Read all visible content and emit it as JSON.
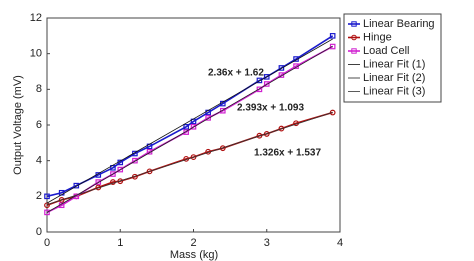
{
  "chart_data": {
    "type": "line",
    "xlabel": "Mass (kg)",
    "ylabel": "Output Voltage (mV)",
    "xlim": [
      0,
      4
    ],
    "xticks": [
      0,
      1,
      2,
      3,
      4
    ],
    "ylim": [
      0,
      12
    ],
    "yticks": [
      0,
      2,
      4,
      6,
      8,
      10,
      12
    ],
    "grid": false,
    "legend": "outside-right",
    "annotations": [
      "2.36x + 1.62",
      "2.393x + 1.093",
      "1.326x + 1.537"
    ],
    "series": [
      {
        "name": "Linear Bearing",
        "color": "#1a1acc",
        "marker": "square",
        "x": [
          0,
          0.2,
          0.4,
          0.7,
          0.9,
          1.0,
          1.2,
          1.4,
          1.9,
          2.0,
          2.2,
          2.4,
          2.9,
          3.0,
          3.2,
          3.4,
          3.9
        ],
        "values": [
          2.0,
          2.2,
          2.6,
          3.2,
          3.6,
          3.9,
          4.4,
          4.8,
          5.9,
          6.2,
          6.7,
          7.2,
          8.5,
          8.7,
          9.2,
          9.7,
          11.0
        ]
      },
      {
        "name": "Hinge",
        "color": "#b01010",
        "marker": "circle",
        "x": [
          0,
          0.2,
          0.4,
          0.7,
          0.9,
          1.0,
          1.2,
          1.4,
          1.9,
          2.0,
          2.2,
          2.4,
          2.9,
          3.0,
          3.2,
          3.4,
          3.9
        ],
        "values": [
          1.5,
          1.8,
          2.0,
          2.5,
          2.8,
          2.85,
          3.1,
          3.4,
          4.1,
          4.2,
          4.5,
          4.7,
          5.4,
          5.5,
          5.8,
          6.1,
          6.7
        ]
      },
      {
        "name": "Load Cell",
        "color": "#d020d0",
        "marker": "square",
        "x": [
          0,
          0.2,
          0.4,
          0.7,
          0.9,
          1.0,
          1.2,
          1.4,
          1.9,
          2.0,
          2.2,
          2.4,
          2.9,
          3.0,
          3.2,
          3.4,
          3.9
        ],
        "values": [
          1.1,
          1.5,
          2.0,
          2.8,
          3.25,
          3.5,
          4.0,
          4.5,
          5.6,
          5.9,
          6.4,
          6.8,
          8.0,
          8.3,
          8.8,
          9.3,
          10.4
        ]
      },
      {
        "name": "Linear Fit (1)",
        "color": "#111111",
        "marker": null,
        "x": [
          0,
          3.9
        ],
        "values": [
          1.62,
          10.824
        ]
      },
      {
        "name": "Linear Fit (2)",
        "color": "#222222",
        "marker": null,
        "x": [
          0,
          3.9
        ],
        "values": [
          1.093,
          10.426
        ]
      },
      {
        "name": "Linear Fit (3)",
        "color": "#333333",
        "marker": null,
        "x": [
          0,
          3.9
        ],
        "values": [
          1.537,
          6.708
        ]
      }
    ]
  }
}
